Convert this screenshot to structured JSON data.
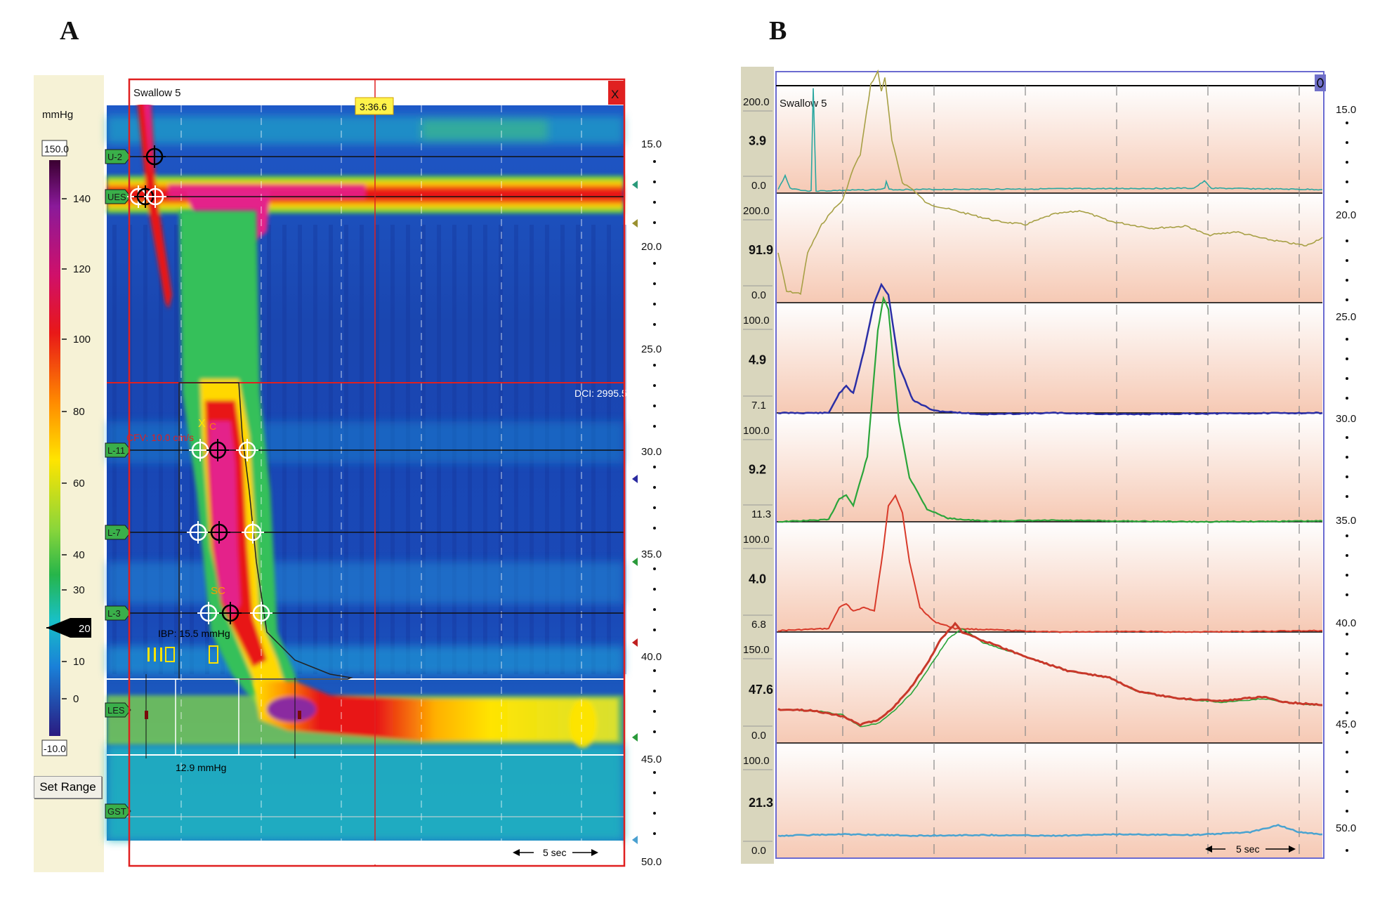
{
  "panels": {
    "a_label": "A",
    "b_label": "B"
  },
  "panel_a": {
    "title": "Swallow 5",
    "close_label": "X",
    "time_marker": "3:36.6",
    "unit_label": "mmHg",
    "range_max": "150.0",
    "range_min": "-10.0",
    "set_range_label": "Set Range",
    "colorbar_ticks": [
      "140",
      "120",
      "100",
      "80",
      "60",
      "40",
      "30",
      "10",
      "0"
    ],
    "threshold_value": "20",
    "depth_ticks": [
      "15.0",
      "20.0",
      "25.0",
      "30.0",
      "35.0",
      "40.0",
      "45.0",
      "50.0"
    ],
    "sensors": [
      "U-2",
      "UES",
      "L-11",
      "L-7",
      "L-3",
      "LES",
      "GST"
    ],
    "dci_label": "DCI: 2995.5",
    "cfv_label": "CFV: 10.0 cm/s",
    "ibp_label": "IBP: 15.5 mmHg",
    "irp_label": "12.9 mmHg",
    "marker_c": "C",
    "marker_x": "X",
    "marker_sc": "SC",
    "scale_label": "5 sec",
    "colors": {
      "border": "#e02020",
      "high": "#e8008e",
      "mid": "#ffe400",
      "low": "#1a3fae"
    }
  },
  "chart_data": {
    "type": "line",
    "title": "Swallow 5",
    "x_scale_label": "5 sec",
    "depth_axis": [
      "15.0",
      "20.0",
      "25.0",
      "30.0",
      "35.0",
      "40.0",
      "45.0",
      "50.0"
    ],
    "tracks": [
      {
        "top": "200.0",
        "value": "3.9",
        "bottom": "0.0",
        "color": "#2aa7a0"
      },
      {
        "top": "200.0",
        "value": "91.9",
        "bottom": "0.0",
        "color": "#a7a045"
      },
      {
        "top": "100.0",
        "value": "4.9",
        "bottom": "7.1",
        "color": "#2b2fa6"
      },
      {
        "top": "100.0",
        "value": "9.2",
        "bottom": "11.3",
        "color": "#2aa53a"
      },
      {
        "top": "100.0",
        "value": "4.0",
        "bottom": "6.8",
        "color": "#d83a2a"
      },
      {
        "top": "150.0",
        "value": "47.6",
        "bottom": "0.0",
        "color": "#c8382a"
      },
      {
        "top": "100.0",
        "value": "21.3",
        "bottom": "0.0",
        "color": "#4aa3d0"
      }
    ]
  }
}
